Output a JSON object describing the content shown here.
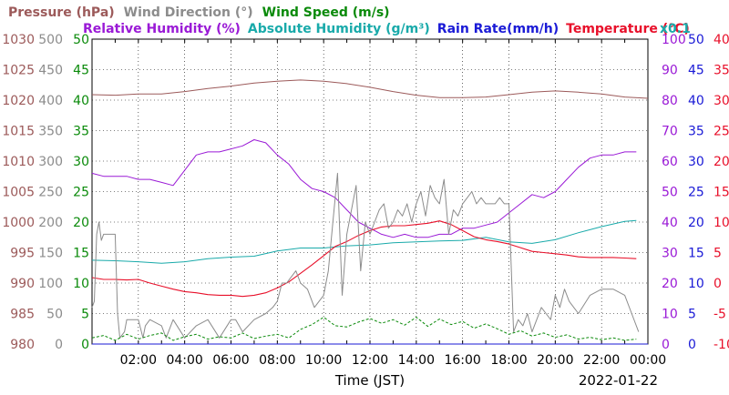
{
  "chart_data": {
    "type": "line",
    "legend_row1": [
      {
        "key": "pressure",
        "text": "Pressure (hPa)",
        "color": "#9c5a5a"
      },
      {
        "key": "wind_dir",
        "text": "Wind Direction (°)",
        "color": "#8c8c8c"
      },
      {
        "key": "wind_speed",
        "text": "Wind Speed (m/s)",
        "color": "#0a8a0a"
      }
    ],
    "legend_row2": [
      {
        "key": "rh",
        "text": "Relative Humidity (%)",
        "color": "#9a1ad6"
      },
      {
        "key": "abs_hum",
        "text": "Absolute Humidity (g/m³)",
        "color": "#19aaaa"
      },
      {
        "key": "rain",
        "text": "Rain Rate(mm/h)",
        "color": "#1a1ad6"
      },
      {
        "key": "temp",
        "text": "Temperature (°C)",
        "color": "#e8102a"
      }
    ],
    "abs_hum_scale_note": "x0.1",
    "xlabel": "Time (JST)",
    "date": "2022-01-22",
    "x_ticks": [
      "02:00",
      "04:00",
      "06:00",
      "08:00",
      "10:00",
      "12:00",
      "14:00",
      "16:00",
      "18:00",
      "20:00",
      "22:00",
      "00:00"
    ],
    "axes": [
      {
        "key": "pressure",
        "color": "#9c5a5a",
        "ticks": [
          "980",
          "985",
          "990",
          "995",
          "1000",
          "1005",
          "1010",
          "1015",
          "1020",
          "1025",
          "1030"
        ],
        "ylim": [
          980,
          1030
        ]
      },
      {
        "key": "wind_dir",
        "color": "#8c8c8c",
        "ticks": [
          "0",
          "50",
          "100",
          "150",
          "200",
          "250",
          "300",
          "350",
          "400",
          "450",
          "500"
        ],
        "ylim": [
          0,
          500
        ]
      },
      {
        "key": "wind_speed",
        "color": "#0a8a0a",
        "ticks": [
          "0",
          "5",
          "10",
          "15",
          "20",
          "25",
          "30",
          "35",
          "40",
          "45",
          "50"
        ],
        "ylim": [
          0,
          50
        ]
      },
      {
        "key": "rh",
        "color": "#9a1ad6",
        "ticks": [
          "0",
          "10",
          "20",
          "30",
          "40",
          "50",
          "60",
          "70",
          "80",
          "90",
          "100"
        ],
        "ylim": [
          0,
          100
        ]
      },
      {
        "key": "rain",
        "color": "#1a1ad6",
        "ticks": [
          "0",
          "5",
          "10",
          "15",
          "20",
          "25",
          "30",
          "35",
          "40",
          "45",
          "50"
        ],
        "ylim": [
          0,
          50
        ]
      },
      {
        "key": "temp",
        "color": "#e8102a",
        "ticks": [
          "-10",
          "-5",
          "0",
          "5",
          "10",
          "15",
          "20",
          "25",
          "30",
          "35",
          "40"
        ],
        "ylim": [
          -10,
          40
        ]
      }
    ],
    "x_range_hours": [
      0,
      24
    ],
    "grid": true,
    "series": [
      {
        "name": "Pressure (hPa)",
        "key": "pressure",
        "color": "#9c5a5a",
        "width": 1,
        "x": [
          0,
          1,
          2,
          3,
          4,
          5,
          6,
          7,
          8,
          9,
          10,
          11,
          12,
          13,
          14,
          15,
          16,
          17,
          18,
          19,
          20,
          21,
          22,
          23,
          24
        ],
        "y": [
          1020.9,
          1020.8,
          1021.0,
          1021.0,
          1021.4,
          1021.9,
          1022.3,
          1022.8,
          1023.1,
          1023.3,
          1023.1,
          1022.7,
          1022.1,
          1021.4,
          1020.8,
          1020.4,
          1020.4,
          1020.5,
          1020.9,
          1021.3,
          1021.5,
          1021.3,
          1021.0,
          1020.5,
          1020.3
        ]
      },
      {
        "name": "Relative Humidity (%)",
        "key": "rh",
        "color": "#9a1ad6",
        "width": 1,
        "x": [
          0,
          0.5,
          1.0,
          1.5,
          2.0,
          2.5,
          3.0,
          3.5,
          4.0,
          4.5,
          5.0,
          5.5,
          6.0,
          6.5,
          7.0,
          7.5,
          8.0,
          8.5,
          9.0,
          9.5,
          10.0,
          10.5,
          11.0,
          11.5,
          12.0,
          12.5,
          13.0,
          13.5,
          14.0,
          14.5,
          15.0,
          15.5,
          16.0,
          16.5,
          17.0,
          17.5,
          18.0,
          18.5,
          19.0,
          19.5,
          20.0,
          20.5,
          21.0,
          21.5,
          22.0,
          22.5,
          23.0,
          23.5
        ],
        "y": [
          56,
          55,
          55,
          55,
          54,
          54,
          53,
          52,
          57,
          62,
          63,
          63,
          64,
          65,
          67,
          66,
          62,
          59,
          54,
          51,
          50,
          48,
          44,
          40,
          38,
          36,
          35,
          36,
          35,
          35,
          36,
          36,
          38,
          38,
          39,
          40,
          43,
          46,
          49,
          48,
          50,
          54,
          58,
          61,
          62,
          62,
          63,
          63
        ]
      },
      {
        "name": "Absolute Humidity (g/m³)",
        "key": "abs_hum",
        "color": "#19aaaa",
        "width": 1,
        "x": [
          0,
          1,
          2,
          3,
          4,
          5,
          6,
          7,
          8,
          9,
          10,
          11,
          12,
          13,
          14,
          15,
          16,
          17,
          18,
          19,
          20,
          21,
          22,
          23,
          23.5
        ],
        "y": [
          27.5,
          27.3,
          27.0,
          26.5,
          27.0,
          28.0,
          28.5,
          28.8,
          30.5,
          31.5,
          31.5,
          32.2,
          32.5,
          33.2,
          33.5,
          33.8,
          34.0,
          35.0,
          33.5,
          33.0,
          34.2,
          36.5,
          38.5,
          40.2,
          40.5
        ]
      },
      {
        "name": "Temperature (°C)",
        "key": "temp",
        "color": "#e8102a",
        "width": 1.1,
        "x": [
          0,
          0.5,
          1.0,
          1.5,
          2.0,
          2.5,
          3.0,
          3.5,
          4.0,
          4.5,
          5.0,
          5.5,
          6.0,
          6.5,
          7.0,
          7.5,
          8.0,
          8.5,
          9.0,
          9.5,
          10.0,
          10.5,
          11.0,
          11.5,
          12.0,
          12.5,
          13.0,
          13.5,
          14.0,
          14.5,
          15.0,
          15.5,
          16.0,
          16.5,
          17.0,
          17.5,
          18.0,
          18.5,
          19.0,
          19.5,
          20.0,
          20.5,
          21.0,
          21.5,
          22.0,
          22.5,
          23.0,
          23.5
        ],
        "y": [
          0.9,
          0.6,
          0.6,
          0.5,
          0.6,
          0.0,
          -0.5,
          -1.0,
          -1.4,
          -1.6,
          -1.9,
          -2.0,
          -2.0,
          -2.2,
          -2.0,
          -1.6,
          -0.8,
          0.2,
          1.6,
          3.0,
          4.5,
          6.0,
          6.8,
          7.8,
          8.6,
          9.2,
          9.4,
          9.4,
          9.6,
          9.8,
          10.2,
          9.6,
          8.6,
          7.6,
          7.1,
          6.8,
          6.4,
          5.8,
          5.2,
          5.0,
          4.8,
          4.6,
          4.3,
          4.2,
          4.2,
          4.2,
          4.1,
          4.0
        ]
      },
      {
        "name": "Wind Direction (°)",
        "key": "wind_dir",
        "color": "#8c8c8c",
        "width": 1,
        "x": [
          0,
          0.1,
          0.2,
          0.3,
          0.4,
          0.5,
          0.8,
          1.0,
          1.1,
          1.2,
          1.4,
          1.5,
          2.0,
          2.2,
          2.3,
          2.5,
          3.0,
          3.2,
          3.5,
          4.0,
          4.5,
          5.0,
          5.5,
          6.0,
          6.2,
          6.5,
          7.0,
          7.5,
          7.8,
          8.0,
          8.2,
          8.4,
          8.6,
          8.8,
          9.0,
          9.3,
          9.6,
          10.0,
          10.2,
          10.4,
          10.6,
          10.8,
          11.0,
          11.2,
          11.4,
          11.6,
          11.8,
          12.0,
          12.2,
          12.4,
          12.6,
          12.8,
          13.0,
          13.2,
          13.4,
          13.6,
          13.8,
          14.0,
          14.2,
          14.4,
          14.6,
          14.8,
          15.0,
          15.2,
          15.4,
          15.6,
          15.8,
          16.0,
          16.2,
          16.4,
          16.6,
          16.8,
          17.0,
          17.2,
          17.4,
          17.6,
          17.8,
          18.0,
          18.2,
          18.4,
          18.6,
          18.8,
          19.0,
          19.2,
          19.4,
          19.6,
          19.8,
          20.0,
          20.2,
          20.4,
          20.6,
          20.8,
          21.0,
          21.5,
          22.0,
          22.5,
          23.0,
          23.3,
          23.6
        ],
        "y": [
          60,
          70,
          180,
          200,
          170,
          180,
          180,
          180,
          50,
          10,
          20,
          40,
          40,
          10,
          30,
          40,
          30,
          10,
          40,
          10,
          30,
          40,
          10,
          40,
          40,
          20,
          40,
          50,
          60,
          70,
          100,
          100,
          110,
          120,
          100,
          90,
          60,
          80,
          120,
          200,
          280,
          80,
          180,
          220,
          260,
          120,
          200,
          180,
          200,
          220,
          230,
          190,
          200,
          220,
          210,
          230,
          200,
          230,
          250,
          210,
          260,
          240,
          230,
          270,
          180,
          220,
          210,
          230,
          240,
          250,
          230,
          240,
          230,
          230,
          230,
          240,
          230,
          230,
          20,
          40,
          30,
          50,
          20,
          40,
          60,
          50,
          40,
          80,
          60,
          90,
          70,
          60,
          50,
          80,
          90,
          90,
          80,
          50,
          20
        ]
      },
      {
        "name": "Wind Speed (m/s)",
        "key": "wind_speed",
        "color": "#0a8a0a",
        "width": 1,
        "dash": "3,2",
        "x": [
          0,
          0.5,
          1.0,
          1.5,
          2.0,
          2.5,
          3.0,
          3.5,
          4.0,
          4.5,
          5.0,
          5.5,
          6.0,
          6.5,
          7.0,
          7.5,
          8.0,
          8.5,
          9.0,
          9.5,
          10.0,
          10.5,
          11.0,
          11.5,
          12.0,
          12.5,
          13.0,
          13.5,
          14.0,
          14.5,
          15.0,
          15.5,
          16.0,
          16.5,
          17.0,
          17.5,
          18.0,
          18.5,
          19.0,
          19.5,
          20.0,
          20.5,
          21.0,
          21.5,
          22.0,
          22.5,
          23.0,
          23.5
        ],
        "y": [
          1.0,
          1.4,
          0.6,
          1.6,
          0.8,
          1.4,
          1.8,
          0.6,
          1.2,
          1.6,
          0.8,
          1.2,
          1.0,
          1.8,
          0.9,
          1.3,
          1.6,
          1.0,
          2.4,
          3.2,
          4.4,
          3.0,
          2.8,
          3.6,
          4.2,
          3.4,
          4.0,
          3.1,
          4.4,
          2.9,
          4.1,
          3.2,
          3.7,
          2.6,
          3.3,
          2.5,
          1.6,
          2.2,
          1.3,
          1.8,
          1.1,
          1.5,
          0.8,
          1.1,
          0.7,
          1.0,
          0.6,
          0.8
        ]
      },
      {
        "name": "Rain Rate(mm/h)",
        "key": "rain",
        "color": "#1a1ad6",
        "width": 1,
        "x": [
          0,
          24
        ],
        "y": [
          0,
          0
        ]
      }
    ]
  }
}
